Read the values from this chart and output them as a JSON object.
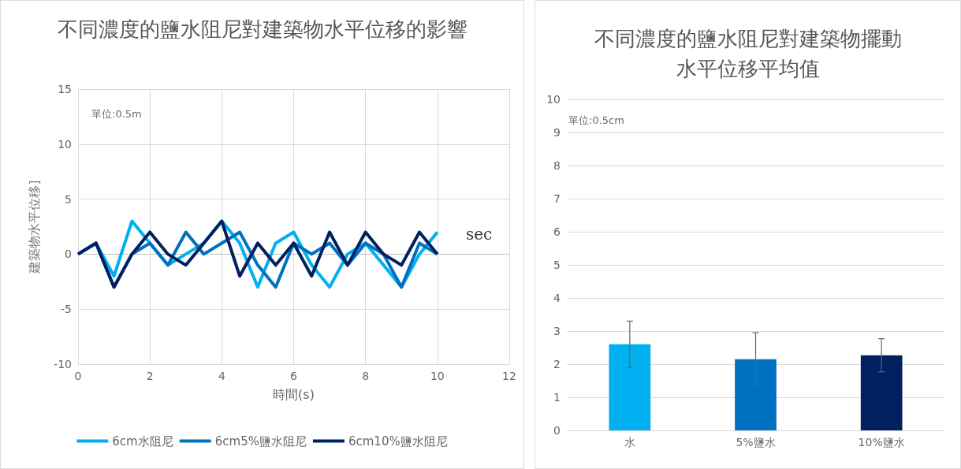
{
  "chart_data": [
    {
      "type": "line",
      "title": "不同濃度的鹽水阻尼對建築物水平位移的影響",
      "xlabel": "時間(s)",
      "ylabel": "建築物水平位移]",
      "x": [
        0,
        0.5,
        1,
        1.5,
        2,
        2.5,
        3,
        3.5,
        4,
        4.5,
        5,
        5.5,
        6,
        6.5,
        7,
        7.5,
        8,
        8.5,
        9,
        9.5,
        10
      ],
      "series": [
        {
          "name": "6cm水阻尼",
          "color": "#00b0f0",
          "values": [
            0,
            1,
            -2,
            3,
            1,
            -1,
            0,
            1,
            3,
            1,
            -3,
            1,
            2,
            -1,
            -3,
            0,
            1,
            -1,
            -3,
            0,
            2
          ]
        },
        {
          "name": "6cm5%鹽水阻尼",
          "color": "#0070c0",
          "values": [
            0,
            1,
            -3,
            0,
            1,
            -1,
            2,
            0,
            1,
            2,
            -1,
            -3,
            1,
            0,
            1,
            -1,
            1,
            0,
            -3,
            1,
            0
          ]
        },
        {
          "name": "6cm10%鹽水阻尼",
          "color": "#002060",
          "values": [
            0,
            1,
            -3,
            0,
            2,
            0,
            -1,
            1,
            3,
            -2,
            1,
            -1,
            1,
            -2,
            2,
            -1,
            2,
            0,
            -1,
            2,
            0
          ]
        }
      ],
      "xlim": [
        0,
        12
      ],
      "xticks": [
        0,
        2,
        4,
        6,
        8,
        10,
        12
      ],
      "ylim": [
        -10,
        15
      ],
      "yticks": [
        -10,
        -5,
        0,
        5,
        10,
        15
      ],
      "grid": true,
      "legend": "bottom",
      "marker": "none",
      "line_style": "solid",
      "annotations": [
        "單位:0.5m",
        "sec"
      ]
    },
    {
      "type": "bar",
      "title": "不同濃度的鹽水阻尼對建築物擺動",
      "subtitle": "水平位移平均值",
      "categories": [
        "水",
        "5%鹽水",
        "10%鹽水"
      ],
      "values": [
        2.6,
        2.15,
        2.27
      ],
      "colors": [
        "#00b0f0",
        "#0070c0",
        "#002060"
      ],
      "errors": [
        0.7,
        0.8,
        0.5
      ],
      "ylim": [
        0,
        10
      ],
      "yticks": [
        0,
        1,
        2,
        3,
        4,
        5,
        6,
        7,
        8,
        9,
        10
      ],
      "grid": "y",
      "legend": false,
      "annotations": [
        "單位:0.5cm"
      ]
    }
  ]
}
